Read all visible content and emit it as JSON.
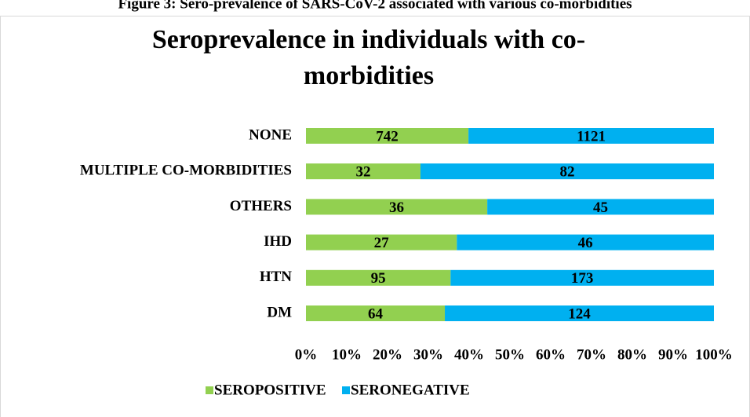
{
  "caption": "Figure 3: Sero-prevalence of SARS-CoV-2 associated with various co-morbidities",
  "chart_data": {
    "type": "bar",
    "orientation": "horizontal",
    "stacking": "percent",
    "title": "Seroprevalence in individuals with co-morbidities",
    "categories": [
      "NONE",
      "MULTIPLE CO-MORBIDITIES",
      "OTHERS",
      "IHD",
      "HTN",
      "DM"
    ],
    "series": [
      {
        "name": "SEROPOSITIVE",
        "color": "#92d050",
        "values": [
          742,
          32,
          36,
          27,
          95,
          64
        ]
      },
      {
        "name": "SERONEGATIVE",
        "color": "#00b0f0",
        "values": [
          1121,
          82,
          45,
          46,
          173,
          124
        ]
      }
    ],
    "xlim": [
      0,
      100
    ],
    "xticks": [
      {
        "value": 0,
        "label": "0%"
      },
      {
        "value": 10,
        "label": "10%"
      },
      {
        "value": 20,
        "label": "20%"
      },
      {
        "value": 30,
        "label": "30%"
      },
      {
        "value": 40,
        "label": "40%"
      },
      {
        "value": 50,
        "label": "50%"
      },
      {
        "value": 60,
        "label": "60%"
      },
      {
        "value": 70,
        "label": "70%"
      },
      {
        "value": 80,
        "label": "80%"
      },
      {
        "value": 90,
        "label": "90%"
      },
      {
        "value": 100,
        "label": "100%"
      }
    ],
    "grid": false,
    "legend": "bottom"
  }
}
